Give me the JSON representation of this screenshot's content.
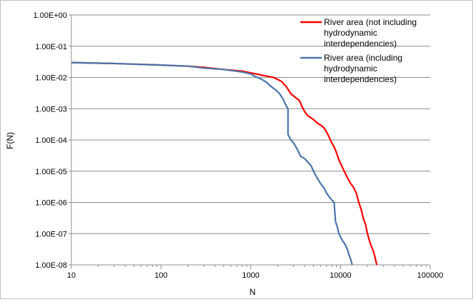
{
  "chart_data": {
    "type": "line",
    "title": "",
    "xlabel": "N",
    "ylabel": "F(N)",
    "x_scale": "log",
    "y_scale": "log",
    "xlim": [
      10,
      100000
    ],
    "ylim": [
      1e-08,
      1
    ],
    "x_ticks": [
      {
        "value": 10,
        "label": "10"
      },
      {
        "value": 100,
        "label": "100"
      },
      {
        "value": 1000,
        "label": "1000"
      },
      {
        "value": 10000,
        "label": "10000"
      },
      {
        "value": 100000,
        "label": "100000"
      }
    ],
    "y_ticks": [
      {
        "value": 1,
        "label": "1.00E+00"
      },
      {
        "value": 0.1,
        "label": "1.00E-01"
      },
      {
        "value": 0.01,
        "label": "1.00E-02"
      },
      {
        "value": 0.001,
        "label": "1.00E-03"
      },
      {
        "value": 0.0001,
        "label": "1.00E-04"
      },
      {
        "value": 1e-05,
        "label": "1.00E-05"
      },
      {
        "value": 1e-06,
        "label": "1.00E-06"
      },
      {
        "value": 1e-07,
        "label": "1.00E-07"
      },
      {
        "value": 1e-08,
        "label": "1.00E-08"
      }
    ],
    "grid": "horizontal",
    "legend_position": "top-right",
    "series": [
      {
        "name": "River area (not including hydrodynamic interdependencies)",
        "legend_lines": [
          "River area (not including",
          "hydrodynamic",
          "interdependencies)"
        ],
        "color": "#ff0000",
        "x": [
          10,
          30,
          100,
          200,
          300,
          500,
          800,
          1000,
          1300,
          1800,
          2200,
          2500,
          2800,
          3200,
          3500,
          3700,
          4000,
          4300,
          5000,
          5500,
          6000,
          6500,
          7000,
          7500,
          8000,
          8500,
          9000,
          9500,
          10000,
          11000,
          12000,
          13000,
          14000,
          15000,
          16000,
          17000,
          18000,
          19000,
          20000,
          21000,
          22000,
          23000,
          24000,
          25000,
          25500
        ],
        "y": [
          0.03,
          0.028,
          0.025,
          0.023,
          0.021,
          0.018,
          0.016,
          0.014,
          0.012,
          0.01,
          0.0075,
          0.005,
          0.003,
          0.0022,
          0.0018,
          0.0012,
          0.0008,
          0.0006,
          0.00045,
          0.00035,
          0.0003,
          0.00025,
          0.00018,
          0.00012,
          8e-05,
          6e-05,
          4e-05,
          2.5e-05,
          1.8e-05,
          1e-05,
          6e-06,
          4e-06,
          3e-06,
          2e-06,
          1e-06,
          6e-07,
          3e-07,
          2e-07,
          1e-07,
          6e-08,
          4e-08,
          3e-08,
          2e-08,
          1.2e-08,
          1e-08
        ]
      },
      {
        "name": "River area (including hydrodynamic interdependencies)",
        "legend_lines": [
          "River area (including",
          "hydrodynamic",
          "interdependencies)"
        ],
        "color": "#4a74a8",
        "x": [
          10,
          30,
          100,
          200,
          300,
          500,
          800,
          1000,
          1100,
          1300,
          1500,
          1700,
          1900,
          2100,
          2300,
          2400,
          2500,
          2600,
          2600,
          2800,
          3000,
          3300,
          3600,
          4000,
          4300,
          4700,
          5000,
          5500,
          6000,
          6500,
          7000,
          7500,
          8000,
          8500,
          8600,
          8700,
          8800,
          9000,
          9300,
          9600,
          10000,
          10500,
          11000,
          11500,
          12000,
          12500,
          13000,
          13500
        ],
        "y": [
          0.03,
          0.028,
          0.025,
          0.023,
          0.02,
          0.018,
          0.015,
          0.013,
          0.011,
          0.009,
          0.007,
          0.005,
          0.004,
          0.003,
          0.002,
          0.0015,
          0.0012,
          0.001,
          0.00015,
          0.0001,
          8e-05,
          5e-05,
          3e-05,
          2.5e-05,
          2e-05,
          1.5e-05,
          1e-05,
          6e-06,
          4e-06,
          3e-06,
          2e-06,
          1.5e-06,
          1.2e-06,
          1e-06,
          6e-07,
          4e-07,
          2.5e-07,
          2e-07,
          1.5e-07,
          1e-07,
          8e-08,
          6e-08,
          5e-08,
          4e-08,
          3e-08,
          2e-08,
          1.5e-08,
          1e-08
        ]
      }
    ]
  }
}
